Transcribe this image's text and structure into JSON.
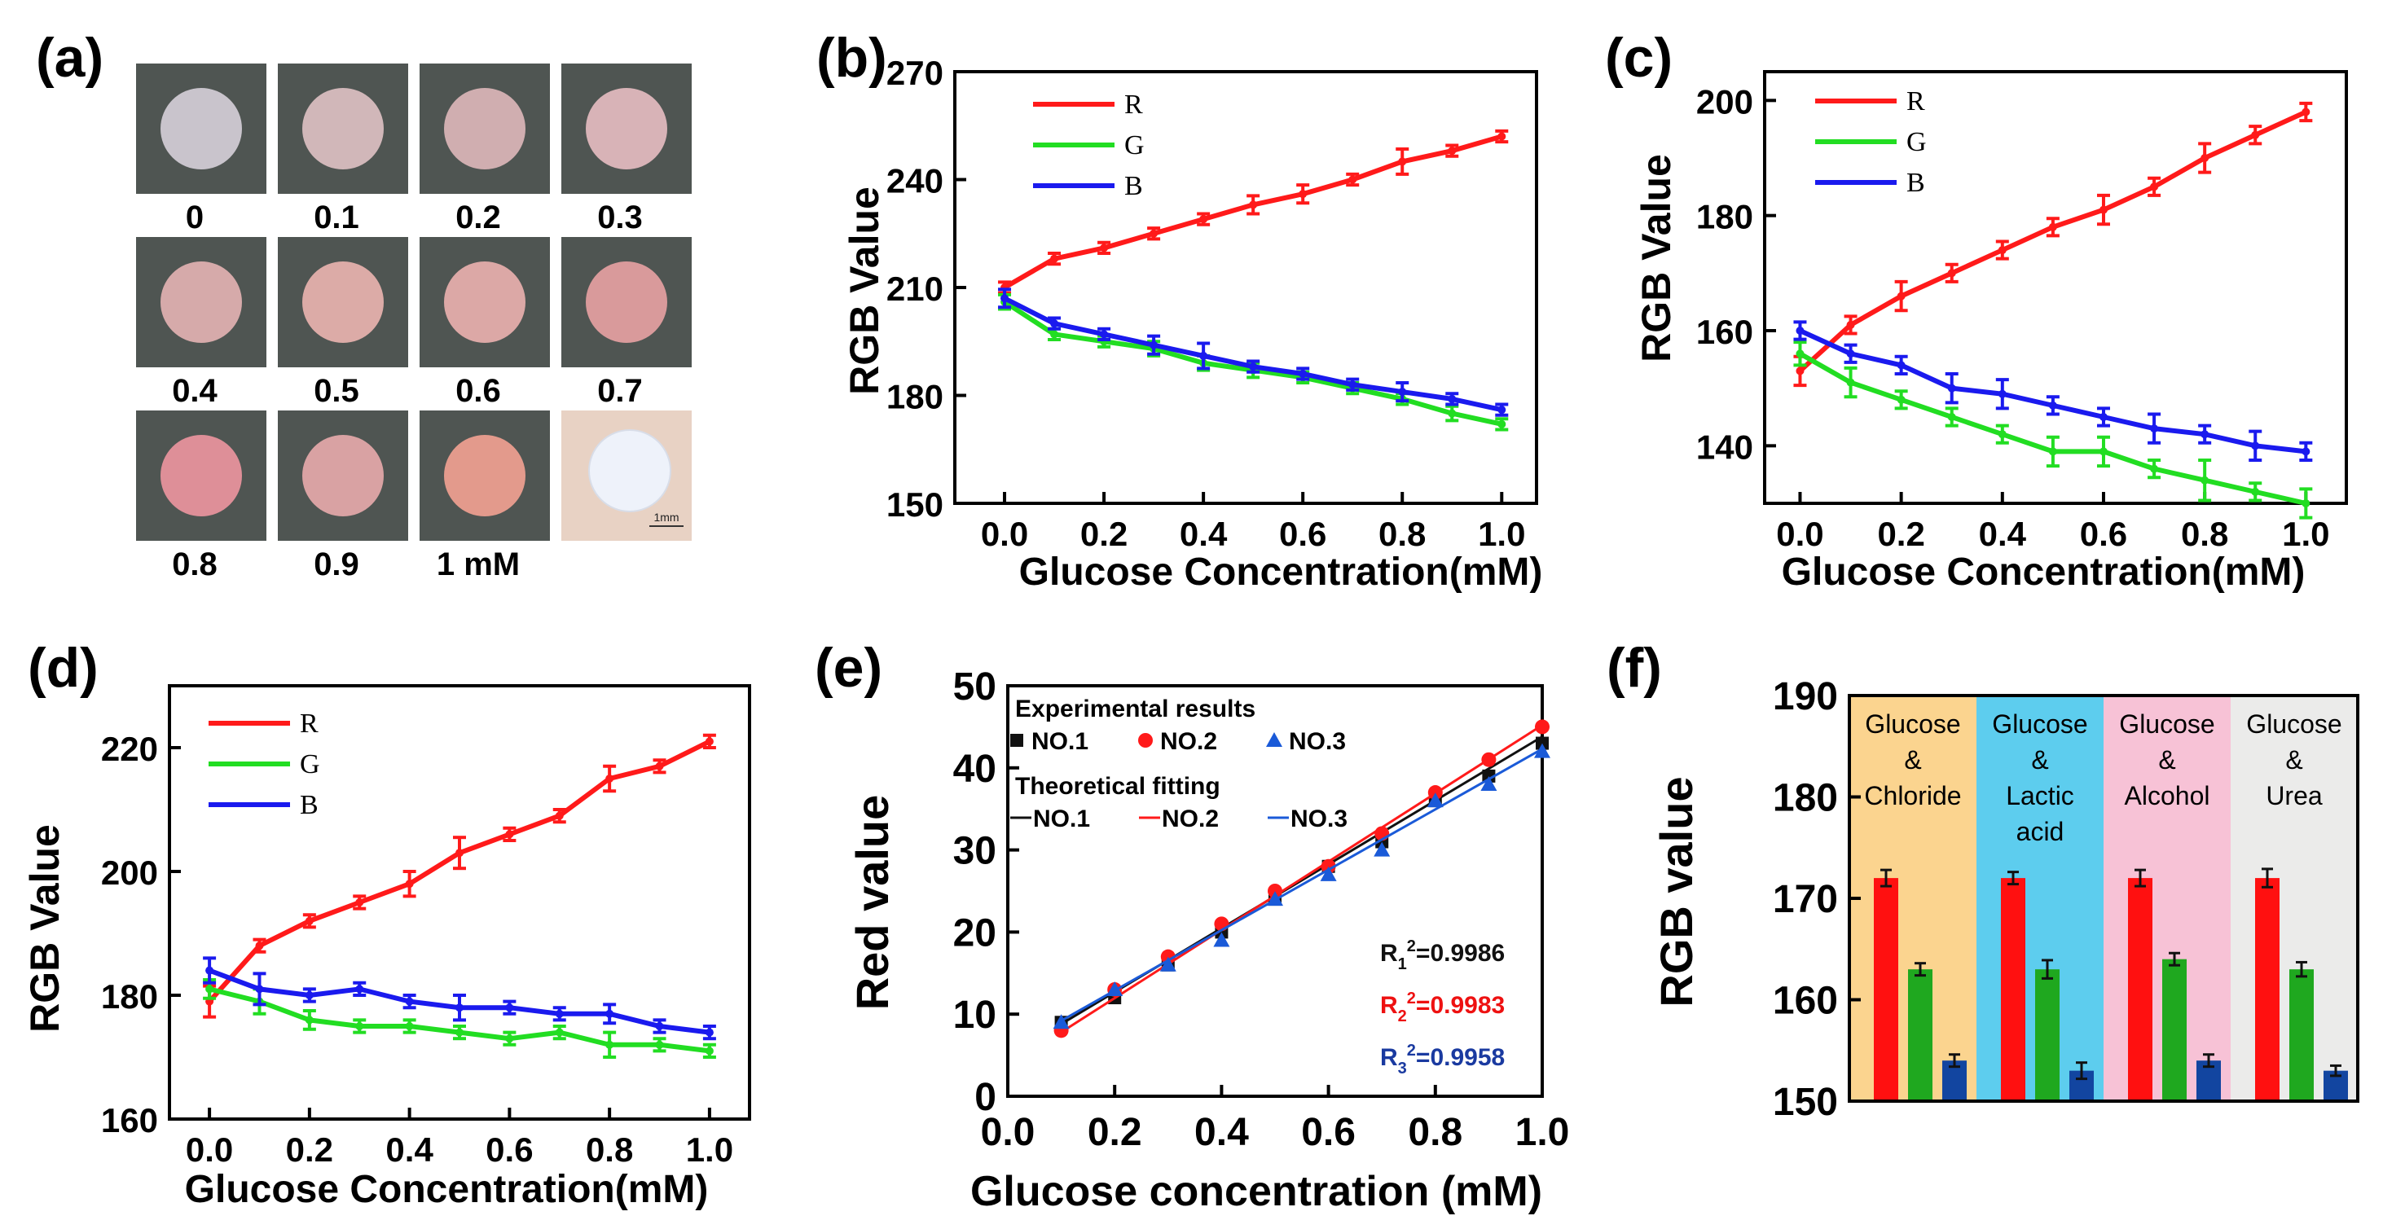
{
  "chart_data": [
    {
      "panel": "(a)",
      "type": "photo-grid",
      "labels": [
        "0",
        "0.1",
        "0.2",
        "0.3",
        "0.4",
        "0.5",
        "0.6",
        "0.7",
        "0.8",
        "0.9",
        "1 mM"
      ],
      "disc_colors": [
        "#c9c4cc",
        "#d1b7b9",
        "#d0aeb0",
        "#d8b3b7",
        "#d6aaaa",
        "#dcaba7",
        "#dca8a6",
        "#d99a9b",
        "#de8f98",
        "#d9a2a3",
        "#e39a8c"
      ],
      "scale_bar": "1mm"
    },
    {
      "panel": "(b)",
      "type": "line",
      "x": [
        0.0,
        0.1,
        0.2,
        0.3,
        0.4,
        0.5,
        0.6,
        0.7,
        0.8,
        0.9,
        1.0
      ],
      "series": [
        {
          "name": "R",
          "color": "#ff1a1a",
          "values": [
            210,
            218,
            221,
            225,
            229,
            233,
            236,
            240,
            245,
            248,
            252
          ],
          "errors": [
            1.5,
            1.5,
            1.5,
            1.5,
            1.5,
            2.5,
            2.5,
            1.5,
            3.5,
            1.5,
            1.5
          ]
        },
        {
          "name": "G",
          "color": "#22dd22",
          "values": [
            206,
            197,
            195,
            193,
            189,
            187,
            185,
            182,
            179,
            175,
            172
          ],
          "errors": [
            2,
            1.5,
            1.5,
            2,
            2,
            2,
            1.5,
            1.5,
            1.5,
            2,
            1.5
          ]
        },
        {
          "name": "B",
          "color": "#1a1aee",
          "values": [
            207,
            200,
            197,
            194,
            191,
            188,
            186,
            183,
            181,
            179,
            176
          ],
          "errors": [
            2.5,
            1.5,
            1.5,
            2.5,
            3.5,
            1.5,
            1.5,
            1.5,
            2.5,
            1.5,
            1.5
          ]
        }
      ],
      "xlabel": "Glucose Concentration(mM)",
      "ylabel": "RGB Value",
      "xlim": [
        -0.1,
        1.07
      ],
      "ylim": [
        150,
        270
      ],
      "yticks": [
        150,
        180,
        210,
        240,
        270
      ],
      "xticks": [
        0.0,
        0.2,
        0.4,
        0.6,
        0.8,
        1.0
      ],
      "xtick_labels": [
        "0.0",
        "0.2",
        "0.4",
        "0.6",
        "0.8",
        "1.0"
      ],
      "legend": "top-left"
    },
    {
      "panel": "(c)",
      "type": "line",
      "x": [
        0.0,
        0.1,
        0.2,
        0.3,
        0.4,
        0.5,
        0.6,
        0.7,
        0.8,
        0.9,
        1.0
      ],
      "series": [
        {
          "name": "R",
          "color": "#ff1a1a",
          "values": [
            153,
            161,
            166,
            170,
            174,
            178,
            181,
            185,
            190,
            194,
            198
          ],
          "errors": [
            2.5,
            1.5,
            2.5,
            1.5,
            1.5,
            1.5,
            2.5,
            1.5,
            2.5,
            1.5,
            1.5
          ]
        },
        {
          "name": "G",
          "color": "#22dd22",
          "values": [
            156,
            151,
            148,
            145,
            142,
            139,
            139,
            136,
            134,
            132,
            130
          ],
          "errors": [
            2,
            2.5,
            1.5,
            1.5,
            1.5,
            2.5,
            2.5,
            1.5,
            3.5,
            1.5,
            2.5
          ]
        },
        {
          "name": "B",
          "color": "#1a1aee",
          "values": [
            160,
            156,
            154,
            150,
            149,
            147,
            145,
            143,
            142,
            140,
            139
          ],
          "errors": [
            1.5,
            1.5,
            1.5,
            2.5,
            2.5,
            1.5,
            1.5,
            2.5,
            1.5,
            2.5,
            1.5
          ]
        }
      ],
      "xlabel": "Glucose Concentration(mM)",
      "ylabel": "RGB Value",
      "xlim": [
        -0.07,
        1.08
      ],
      "ylim": [
        130,
        205
      ],
      "yticks": [
        140,
        160,
        180,
        200
      ],
      "xticks": [
        0.0,
        0.2,
        0.4,
        0.6,
        0.8,
        1.0
      ],
      "xtick_labels": [
        "0.0",
        "0.2",
        "0.4",
        "0.6",
        "0.8",
        "1.0"
      ],
      "legend": "top-left"
    },
    {
      "panel": "(d)",
      "type": "line",
      "x": [
        0.0,
        0.1,
        0.2,
        0.3,
        0.4,
        0.5,
        0.6,
        0.7,
        0.8,
        0.9,
        1.0
      ],
      "series": [
        {
          "name": "R",
          "color": "#ff1a1a",
          "values": [
            179,
            188,
            192,
            195,
            198,
            203,
            206,
            209,
            215,
            217,
            221
          ],
          "errors": [
            2.5,
            1,
            1,
            1,
            2,
            2.5,
            1,
            1,
            2,
            1,
            1
          ]
        },
        {
          "name": "G",
          "color": "#22dd22",
          "values": [
            181,
            179,
            176,
            175,
            175,
            174,
            173,
            174,
            172,
            172,
            171
          ],
          "errors": [
            1.5,
            2,
            1.5,
            1,
            1,
            1,
            1,
            1,
            2,
            1,
            1
          ]
        },
        {
          "name": "B",
          "color": "#1a1aee",
          "values": [
            184,
            181,
            180,
            181,
            179,
            178,
            178,
            177,
            177,
            175,
            174
          ],
          "errors": [
            2,
            2.5,
            1,
            1,
            1,
            2,
            1,
            1,
            1.5,
            1,
            1
          ]
        }
      ],
      "xlabel": "Glucose Concentration(mM)",
      "ylabel": "RGB Value",
      "xlim": [
        -0.08,
        1.08
      ],
      "ylim": [
        160,
        230
      ],
      "yticks": [
        160,
        180,
        200,
        220
      ],
      "xticks": [
        0.0,
        0.2,
        0.4,
        0.6,
        0.8,
        1.0
      ],
      "xtick_labels": [
        "0.0",
        "0.2",
        "0.4",
        "0.6",
        "0.8",
        "1.0"
      ],
      "legend": "top-left"
    },
    {
      "panel": "(e)",
      "type": "scatter",
      "x": [
        0.1,
        0.2,
        0.3,
        0.4,
        0.5,
        0.6,
        0.7,
        0.8,
        0.9,
        1.0
      ],
      "series": [
        {
          "name": "NO.1",
          "color": "#111111",
          "marker": "square",
          "values": [
            9,
            12,
            16,
            20,
            24,
            28,
            31,
            36,
            39,
            43
          ],
          "fit": [
            8.8,
            43.8
          ]
        },
        {
          "name": "NO.2",
          "color": "#ff1a1a",
          "marker": "circle",
          "values": [
            8,
            13,
            17,
            21,
            25,
            28,
            32,
            37,
            41,
            45
          ],
          "fit": [
            7.8,
            45.2
          ]
        },
        {
          "name": "NO.3",
          "color": "#1a5ad8",
          "marker": "triangle",
          "values": [
            9,
            13,
            16,
            19,
            24,
            27,
            30,
            36,
            38,
            42
          ],
          "fit": [
            9.2,
            42.3
          ]
        }
      ],
      "xlabel": "Glucose concentration (mM)",
      "ylabel": "Red value",
      "xlim": [
        0.0,
        1.0
      ],
      "ylim": [
        0,
        50
      ],
      "yticks": [
        0,
        10,
        20,
        30,
        40,
        50
      ],
      "xticks": [
        0.0,
        0.2,
        0.4,
        0.6,
        0.8,
        1.0
      ],
      "xtick_labels": [
        "0.0",
        "0.2",
        "0.4",
        "0.6",
        "0.8",
        "1.0"
      ],
      "legend_headings": [
        "Experimental results",
        "Theoretical fitting"
      ],
      "r2": [
        {
          "label": "R",
          "sub": "1",
          "sup": "2",
          "value": "=0.9986",
          "color": "#111111"
        },
        {
          "label": "R",
          "sub": "2",
          "sup": "2",
          "value": "=0.9983",
          "color": "#ee1111"
        },
        {
          "label": "R",
          "sub": "3",
          "sup": "2",
          "value": "=0.9958",
          "color": "#1a3aa0"
        }
      ]
    },
    {
      "panel": "(f)",
      "type": "bar",
      "categories": [
        {
          "lines": [
            "Glucose",
            "&",
            "Chloride"
          ],
          "bg": "#fbd48f"
        },
        {
          "lines": [
            "Glucose",
            "&",
            "Lactic",
            "acid"
          ],
          "bg": "#5dcdee"
        },
        {
          "lines": [
            "Glucose",
            "&",
            "Alcohol"
          ],
          "bg": "#f7c2d6"
        },
        {
          "lines": [
            "Glucose",
            "&",
            "Urea"
          ],
          "bg": "#ebebea"
        }
      ],
      "series": [
        {
          "name": "R",
          "color": "#ff1010",
          "values": [
            172,
            172,
            172,
            172
          ],
          "errors": [
            0.8,
            0.6,
            0.8,
            0.9
          ]
        },
        {
          "name": "G",
          "color": "#1fa81f",
          "values": [
            163,
            163,
            164,
            163
          ],
          "errors": [
            0.6,
            0.9,
            0.6,
            0.7
          ]
        },
        {
          "name": "B",
          "color": "#1245a0",
          "values": [
            154,
            153,
            154,
            153
          ],
          "errors": [
            0.6,
            0.8,
            0.6,
            0.5
          ]
        }
      ],
      "ylabel": "RGB value",
      "ylim": [
        150,
        190
      ],
      "yticks": [
        150,
        160,
        170,
        180,
        190
      ]
    }
  ]
}
